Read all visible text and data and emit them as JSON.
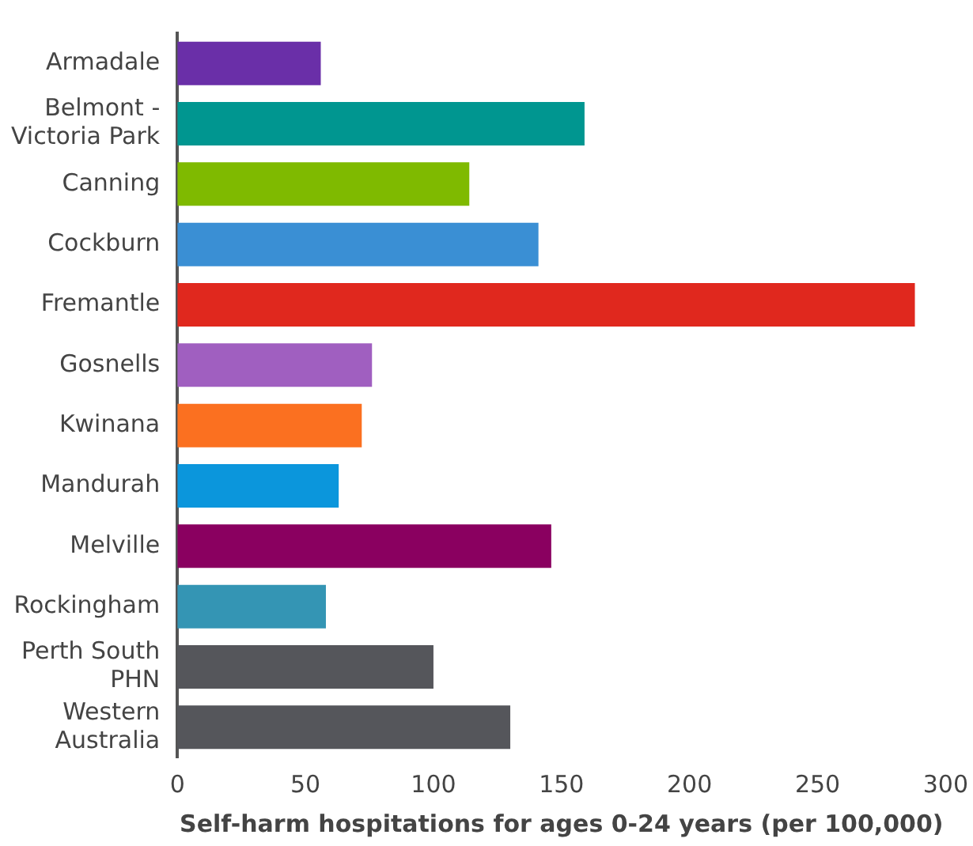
{
  "chart_data": {
    "type": "bar",
    "orientation": "horizontal",
    "xlabel": "Self-harm hospitations for ages 0-24 years (per 100,000)",
    "categories": [
      "Armadale",
      "Belmont - Victoria Park",
      "Canning",
      "Cockburn",
      "Fremantle",
      "Gosnells",
      "Kwinana",
      "Mandurah",
      "Melville",
      "Rockingham",
      "Perth South PHN",
      "Western Australia"
    ],
    "values": [
      56,
      159,
      114,
      141,
      288,
      76,
      72,
      63,
      146,
      58,
      100,
      130
    ],
    "colors": [
      "#6a2fa8",
      "#009690",
      "#7fba00",
      "#3a8fd4",
      "#e0281e",
      "#a05fc0",
      "#fb7020",
      "#0b96dc",
      "#8a0060",
      "#3495b4",
      "#55565b",
      "#55565b"
    ],
    "xlim": [
      0,
      300
    ],
    "xticks": [
      0,
      50,
      100,
      150,
      200,
      250,
      300
    ],
    "grid": false,
    "legend": false
  }
}
